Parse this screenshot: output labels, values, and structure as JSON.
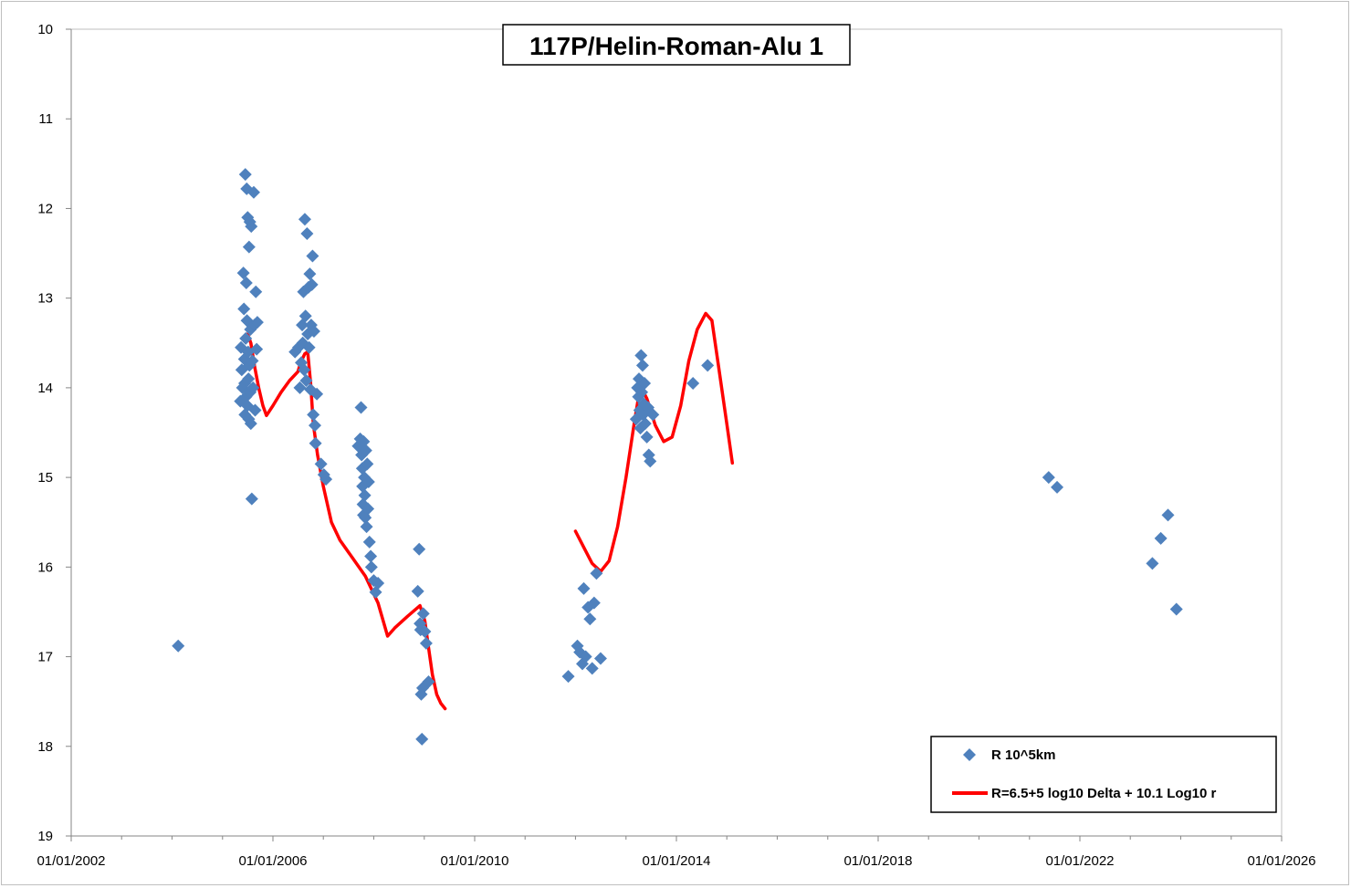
{
  "chart_data": {
    "type": "scatter",
    "title": "117P/Helin-Roman-Alu 1",
    "xlabel": "",
    "ylabel": "",
    "x_axis": {
      "type": "date",
      "min": "2002-01-01",
      "max": "2026-01-01",
      "tick_labels": [
        "01/01/2002",
        "01/01/2006",
        "01/01/2010",
        "01/01/2014",
        "01/01/2018",
        "01/01/2022",
        "01/01/2026"
      ],
      "tick_dates": [
        "2002-01-01",
        "2006-01-01",
        "2010-01-01",
        "2014-01-01",
        "2018-01-01",
        "2022-01-01",
        "2026-01-01"
      ]
    },
    "y_axis": {
      "min": 10,
      "max": 19,
      "inverted": true,
      "ticks": [
        10,
        11,
        12,
        13,
        14,
        15,
        16,
        17,
        18,
        19
      ]
    },
    "grid": false,
    "legend_position": "bottom-right",
    "series": [
      {
        "name": "R 10^5km",
        "kind": "scatter",
        "color": "#4F81BD",
        "marker": "diamond",
        "points": [
          {
            "x": "2004-02-15",
            "y": 16.88
          },
          {
            "x": "2005-05-10",
            "y": 14.15
          },
          {
            "x": "2005-05-15",
            "y": 13.55
          },
          {
            "x": "2005-05-20",
            "y": 13.8
          },
          {
            "x": "2005-05-25",
            "y": 14.0
          },
          {
            "x": "2005-06-01",
            "y": 12.72
          },
          {
            "x": "2005-06-05",
            "y": 13.12
          },
          {
            "x": "2005-06-08",
            "y": 13.68
          },
          {
            "x": "2005-06-10",
            "y": 13.95
          },
          {
            "x": "2005-06-12",
            "y": 14.3
          },
          {
            "x": "2005-06-15",
            "y": 11.62
          },
          {
            "x": "2005-06-18",
            "y": 13.45
          },
          {
            "x": "2005-06-20",
            "y": 14.1
          },
          {
            "x": "2005-06-22",
            "y": 12.83
          },
          {
            "x": "2005-06-25",
            "y": 11.78
          },
          {
            "x": "2005-06-27",
            "y": 13.25
          },
          {
            "x": "2005-06-30",
            "y": 14.2
          },
          {
            "x": "2005-07-02",
            "y": 12.1
          },
          {
            "x": "2005-07-05",
            "y": 13.6
          },
          {
            "x": "2005-07-08",
            "y": 13.9
          },
          {
            "x": "2005-07-10",
            "y": 14.35
          },
          {
            "x": "2005-07-12",
            "y": 12.43
          },
          {
            "x": "2005-07-15",
            "y": 13.75
          },
          {
            "x": "2005-07-18",
            "y": 12.15
          },
          {
            "x": "2005-07-20",
            "y": 14.05
          },
          {
            "x": "2005-07-22",
            "y": 13.35
          },
          {
            "x": "2005-07-25",
            "y": 14.4
          },
          {
            "x": "2005-07-28",
            "y": 12.2
          },
          {
            "x": "2005-08-01",
            "y": 15.24
          },
          {
            "x": "2005-08-05",
            "y": 13.7
          },
          {
            "x": "2005-08-10",
            "y": 14.0
          },
          {
            "x": "2005-08-15",
            "y": 11.82
          },
          {
            "x": "2005-08-20",
            "y": 13.3
          },
          {
            "x": "2005-08-25",
            "y": 14.25
          },
          {
            "x": "2005-08-30",
            "y": 12.93
          },
          {
            "x": "2005-09-05",
            "y": 13.57
          },
          {
            "x": "2005-09-10",
            "y": 13.27
          },
          {
            "x": "2006-06-10",
            "y": 13.6
          },
          {
            "x": "2006-07-05",
            "y": 13.55
          },
          {
            "x": "2006-07-15",
            "y": 14.0
          },
          {
            "x": "2006-07-25",
            "y": 13.72
          },
          {
            "x": "2006-08-01",
            "y": 13.3
          },
          {
            "x": "2006-08-05",
            "y": 13.5
          },
          {
            "x": "2006-08-10",
            "y": 12.93
          },
          {
            "x": "2006-08-15",
            "y": 13.8
          },
          {
            "x": "2006-08-20",
            "y": 12.12
          },
          {
            "x": "2006-08-25",
            "y": 13.2
          },
          {
            "x": "2006-08-30",
            "y": 13.92
          },
          {
            "x": "2006-09-05",
            "y": 12.28
          },
          {
            "x": "2006-09-10",
            "y": 13.4
          },
          {
            "x": "2006-09-15",
            "y": 12.88
          },
          {
            "x": "2006-09-20",
            "y": 13.55
          },
          {
            "x": "2006-09-25",
            "y": 12.73
          },
          {
            "x": "2006-09-30",
            "y": 14.02
          },
          {
            "x": "2006-10-05",
            "y": 13.3
          },
          {
            "x": "2006-10-10",
            "y": 12.85
          },
          {
            "x": "2006-10-15",
            "y": 12.53
          },
          {
            "x": "2006-10-20",
            "y": 14.3
          },
          {
            "x": "2006-10-25",
            "y": 13.37
          },
          {
            "x": "2006-11-01",
            "y": 14.42
          },
          {
            "x": "2006-11-05",
            "y": 14.62
          },
          {
            "x": "2006-11-15",
            "y": 14.07
          },
          {
            "x": "2006-12-15",
            "y": 14.85
          },
          {
            "x": "2007-01-05",
            "y": 14.97
          },
          {
            "x": "2007-01-20",
            "y": 15.02
          },
          {
            "x": "2007-09-10",
            "y": 14.65
          },
          {
            "x": "2007-09-25",
            "y": 14.57
          },
          {
            "x": "2007-10-01",
            "y": 14.22
          },
          {
            "x": "2007-10-05",
            "y": 14.75
          },
          {
            "x": "2007-10-10",
            "y": 14.9
          },
          {
            "x": "2007-10-12",
            "y": 15.1
          },
          {
            "x": "2007-10-15",
            "y": 15.3
          },
          {
            "x": "2007-10-18",
            "y": 15.42
          },
          {
            "x": "2007-10-20",
            "y": 14.6
          },
          {
            "x": "2007-10-25",
            "y": 15.0
          },
          {
            "x": "2007-10-28",
            "y": 15.2
          },
          {
            "x": "2007-11-01",
            "y": 15.45
          },
          {
            "x": "2007-11-05",
            "y": 14.7
          },
          {
            "x": "2007-11-10",
            "y": 15.55
          },
          {
            "x": "2007-11-15",
            "y": 14.85
          },
          {
            "x": "2007-11-20",
            "y": 15.35
          },
          {
            "x": "2007-11-25",
            "y": 15.05
          },
          {
            "x": "2007-12-01",
            "y": 15.72
          },
          {
            "x": "2007-12-10",
            "y": 15.88
          },
          {
            "x": "2007-12-15",
            "y": 16.0
          },
          {
            "x": "2008-01-01",
            "y": 16.15
          },
          {
            "x": "2008-01-15",
            "y": 16.28
          },
          {
            "x": "2008-02-01",
            "y": 16.18
          },
          {
            "x": "2008-11-15",
            "y": 16.27
          },
          {
            "x": "2008-11-25",
            "y": 15.8
          },
          {
            "x": "2008-12-01",
            "y": 16.63
          },
          {
            "x": "2008-12-05",
            "y": 16.7
          },
          {
            "x": "2008-12-10",
            "y": 17.42
          },
          {
            "x": "2008-12-15",
            "y": 17.92
          },
          {
            "x": "2008-12-20",
            "y": 17.35
          },
          {
            "x": "2008-12-25",
            "y": 16.52
          },
          {
            "x": "2009-01-05",
            "y": 16.72
          },
          {
            "x": "2009-01-15",
            "y": 16.85
          },
          {
            "x": "2009-02-01",
            "y": 17.28
          },
          {
            "x": "2011-11-10",
            "y": 17.22
          },
          {
            "x": "2012-01-15",
            "y": 16.88
          },
          {
            "x": "2012-02-01",
            "y": 16.95
          },
          {
            "x": "2012-02-20",
            "y": 17.08
          },
          {
            "x": "2012-03-01",
            "y": 16.24
          },
          {
            "x": "2012-03-15",
            "y": 17.0
          },
          {
            "x": "2012-04-01",
            "y": 16.45
          },
          {
            "x": "2012-04-15",
            "y": 16.58
          },
          {
            "x": "2012-05-01",
            "y": 17.13
          },
          {
            "x": "2012-05-15",
            "y": 16.4
          },
          {
            "x": "2012-06-01",
            "y": 16.07
          },
          {
            "x": "2012-07-01",
            "y": 17.02
          },
          {
            "x": "2013-03-15",
            "y": 14.35
          },
          {
            "x": "2013-03-25",
            "y": 14.0
          },
          {
            "x": "2013-04-01",
            "y": 14.1
          },
          {
            "x": "2013-04-05",
            "y": 13.9
          },
          {
            "x": "2013-04-10",
            "y": 14.25
          },
          {
            "x": "2013-04-15",
            "y": 14.45
          },
          {
            "x": "2013-04-20",
            "y": 13.64
          },
          {
            "x": "2013-04-25",
            "y": 14.05
          },
          {
            "x": "2013-05-01",
            "y": 13.75
          },
          {
            "x": "2013-05-05",
            "y": 14.3
          },
          {
            "x": "2013-05-10",
            "y": 14.18
          },
          {
            "x": "2013-05-15",
            "y": 13.95
          },
          {
            "x": "2013-05-20",
            "y": 14.4
          },
          {
            "x": "2013-06-01",
            "y": 14.55
          },
          {
            "x": "2013-06-10",
            "y": 14.22
          },
          {
            "x": "2013-06-15",
            "y": 14.75
          },
          {
            "x": "2013-06-25",
            "y": 14.82
          },
          {
            "x": "2013-07-15",
            "y": 14.3
          },
          {
            "x": "2014-05-01",
            "y": 13.95
          },
          {
            "x": "2014-08-15",
            "y": 13.75
          },
          {
            "x": "2021-05-20",
            "y": 15.0
          },
          {
            "x": "2021-07-20",
            "y": 15.11
          },
          {
            "x": "2023-06-10",
            "y": 15.96
          },
          {
            "x": "2023-08-10",
            "y": 15.68
          },
          {
            "x": "2023-10-01",
            "y": 15.42
          },
          {
            "x": "2023-12-01",
            "y": 16.47
          }
        ]
      },
      {
        "name": "R=6.5+5 log10 Delta + 10.1 Log10 r",
        "kind": "line",
        "color": "#FF0000",
        "segments": [
          [
            {
              "x": "2005-07-01",
              "y": 13.4
            },
            {
              "x": "2005-07-25",
              "y": 13.5
            },
            {
              "x": "2005-08-20",
              "y": 13.75
            },
            {
              "x": "2005-09-20",
              "y": 14.0
            },
            {
              "x": "2005-10-20",
              "y": 14.2
            },
            {
              "x": "2005-11-15",
              "y": 14.31
            },
            {
              "x": "2006-01-01",
              "y": 14.2
            },
            {
              "x": "2006-03-01",
              "y": 14.05
            },
            {
              "x": "2006-05-01",
              "y": 13.92
            },
            {
              "x": "2006-07-01",
              "y": 13.82
            },
            {
              "x": "2006-07-20",
              "y": 13.72
            },
            {
              "x": "2006-08-20",
              "y": 13.62
            },
            {
              "x": "2006-09-10",
              "y": 13.6
            },
            {
              "x": "2006-10-01",
              "y": 13.95
            },
            {
              "x": "2006-10-20",
              "y": 14.4
            },
            {
              "x": "2006-11-20",
              "y": 14.75
            },
            {
              "x": "2007-01-01",
              "y": 15.1
            },
            {
              "x": "2007-03-01",
              "y": 15.5
            },
            {
              "x": "2007-05-01",
              "y": 15.7
            },
            {
              "x": "2007-08-01",
              "y": 15.9
            },
            {
              "x": "2007-11-01",
              "y": 16.1
            },
            {
              "x": "2008-02-01",
              "y": 16.4
            },
            {
              "x": "2008-04-10",
              "y": 16.77
            },
            {
              "x": "2008-06-01",
              "y": 16.68
            },
            {
              "x": "2008-09-01",
              "y": 16.55
            },
            {
              "x": "2008-12-01",
              "y": 16.43
            },
            {
              "x": "2009-01-05",
              "y": 16.6
            },
            {
              "x": "2009-02-01",
              "y": 16.9
            },
            {
              "x": "2009-03-01",
              "y": 17.2
            },
            {
              "x": "2009-04-01",
              "y": 17.42
            },
            {
              "x": "2009-05-01",
              "y": 17.52
            },
            {
              "x": "2009-06-01",
              "y": 17.58
            }
          ],
          [
            {
              "x": "2012-01-01",
              "y": 15.6
            },
            {
              "x": "2012-03-01",
              "y": 15.78
            },
            {
              "x": "2012-05-01",
              "y": 15.96
            },
            {
              "x": "2012-07-01",
              "y": 16.05
            },
            {
              "x": "2012-09-01",
              "y": 15.93
            },
            {
              "x": "2012-11-01",
              "y": 15.55
            },
            {
              "x": "2013-01-01",
              "y": 15.0
            },
            {
              "x": "2013-03-01",
              "y": 14.4
            },
            {
              "x": "2013-04-15",
              "y": 13.98
            },
            {
              "x": "2013-06-01",
              "y": 14.12
            },
            {
              "x": "2013-08-01",
              "y": 14.42
            },
            {
              "x": "2013-10-01",
              "y": 14.6
            },
            {
              "x": "2013-12-01",
              "y": 14.55
            },
            {
              "x": "2014-02-01",
              "y": 14.2
            },
            {
              "x": "2014-04-01",
              "y": 13.7
            },
            {
              "x": "2014-06-01",
              "y": 13.35
            },
            {
              "x": "2014-08-01",
              "y": 13.17
            },
            {
              "x": "2014-09-15",
              "y": 13.25
            },
            {
              "x": "2014-11-01",
              "y": 13.75
            },
            {
              "x": "2015-01-01",
              "y": 14.4
            },
            {
              "x": "2015-02-10",
              "y": 14.84
            }
          ]
        ]
      }
    ]
  }
}
